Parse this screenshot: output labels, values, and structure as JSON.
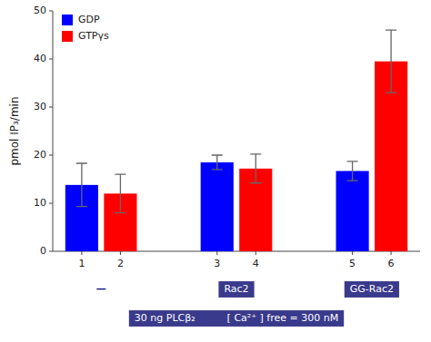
{
  "chart_data": {
    "type": "bar",
    "categories": [
      "1",
      "2",
      "3",
      "4",
      "5",
      "6"
    ],
    "series": [
      {
        "name": "GDP",
        "color": "#0000FF",
        "values": [
          13.8,
          null,
          18.5,
          null,
          16.7,
          null
        ],
        "errors": [
          4.5,
          null,
          1.5,
          null,
          2.0,
          null
        ]
      },
      {
        "name": "GTPγs",
        "color": "#FF0000",
        "values": [
          null,
          12.0,
          null,
          17.2,
          null,
          39.5
        ],
        "errors": [
          null,
          4.0,
          null,
          3.0,
          null,
          6.5
        ]
      }
    ],
    "ylabel": "pmol IP₃/min",
    "ylim": [
      0,
      50
    ],
    "yticks": [
      0,
      10,
      20,
      30,
      40,
      50
    ],
    "grid": false,
    "legend": "upper left",
    "annotations": [
      "—",
      "Rac2",
      "GG-Rac2",
      "30 ng PLCβ₂          [ Ca²⁺ ] free = 300 nM"
    ]
  }
}
